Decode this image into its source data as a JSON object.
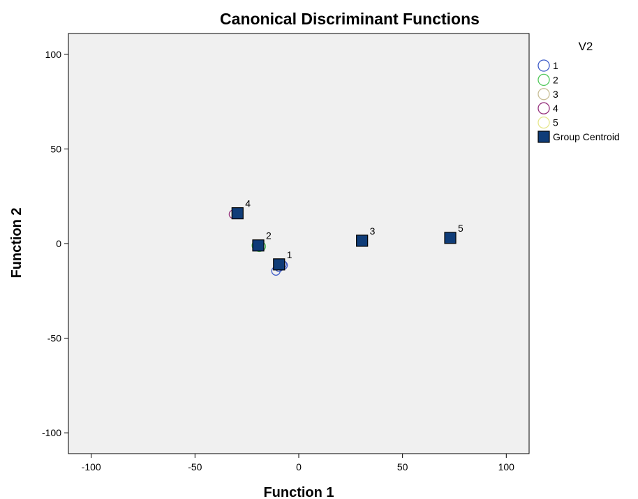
{
  "chart_data": {
    "type": "scatter",
    "title": "Canonical Discriminant Functions",
    "xlabel": "Function 1",
    "ylabel": "Function 2",
    "xlim": [
      -111,
      111
    ],
    "ylim": [
      -111,
      111
    ],
    "xticks": [
      -100,
      -50,
      0,
      50,
      100
    ],
    "yticks": [
      -100,
      -50,
      0,
      50,
      100
    ],
    "xtick_labels": [
      "-100",
      "-50",
      "0",
      "50",
      "100"
    ],
    "ytick_labels": [
      "-100",
      "-50",
      "0",
      "50",
      "100"
    ],
    "grid": false,
    "background": "#f0f0f0",
    "legend": {
      "title": "V2",
      "placement": "right",
      "entries": [
        {
          "label": "1",
          "marker": "circle",
          "color": "#3c5ac8"
        },
        {
          "label": "2",
          "marker": "circle",
          "color": "#50c85a"
        },
        {
          "label": "3",
          "marker": "circle",
          "color": "#c8be96"
        },
        {
          "label": "4",
          "marker": "circle",
          "color": "#96327d"
        },
        {
          "label": "5",
          "marker": "circle",
          "color": "#e6e68c"
        },
        {
          "label": "Group Centroid",
          "marker": "square",
          "color": "#0f3c78"
        }
      ]
    },
    "series": [
      {
        "group": "1",
        "color": "#3c5ac8",
        "points": [
          [
            -11,
            -14.5
          ],
          [
            -8,
            -11
          ],
          [
            -9.5,
            -12.5
          ],
          [
            -7.5,
            -11.5
          ]
        ]
      },
      {
        "group": "2",
        "color": "#50c85a",
        "points": [
          [
            -18,
            -1.5
          ],
          [
            -20.5,
            -1
          ],
          [
            -19,
            -2
          ]
        ]
      },
      {
        "group": "4",
        "color": "#96327d",
        "points": [
          [
            -31.5,
            15.5
          ],
          [
            -30,
            16
          ]
        ]
      }
    ],
    "centroids": [
      {
        "label": "1",
        "x": -9.5,
        "y": -11
      },
      {
        "label": "2",
        "x": -19.5,
        "y": -1
      },
      {
        "label": "3",
        "x": 30.5,
        "y": 1.5
      },
      {
        "label": "4",
        "x": -29.5,
        "y": 16
      },
      {
        "label": "5",
        "x": 73,
        "y": 3
      }
    ],
    "centroid_color": "#0f3c78"
  }
}
